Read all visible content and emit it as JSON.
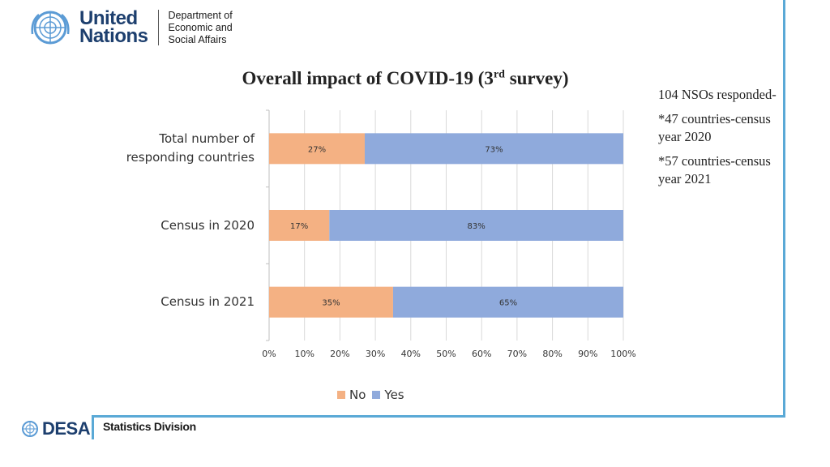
{
  "header": {
    "org_line1": "United",
    "org_line2": "Nations",
    "dept_line1": "Department of",
    "dept_line2": "Economic and",
    "dept_line3": "Social Affairs"
  },
  "title": {
    "prefix": "Overall impact of COVID-19 (3",
    "sup": "rd",
    "suffix": " survey)"
  },
  "notes": [
    "104 NSOs responded-",
    "*47 countries-census year 2020",
    "*57 countries-census year 2021"
  ],
  "footer": {
    "logo_text": "DESA",
    "division": "Statistics Division"
  },
  "colors": {
    "no": "#f4b183",
    "yes": "#8faadc",
    "accent": "#5aa9d6",
    "brand": "#1d3f6e"
  },
  "chart_data": {
    "type": "bar",
    "orientation": "horizontal",
    "stacked": true,
    "percent": true,
    "categories": [
      "Total number of responding countries",
      "Census in 2020",
      "Census in 2021"
    ],
    "category_lines": [
      [
        "Total number of",
        "responding countries"
      ],
      [
        "Census in 2020"
      ],
      [
        "Census in 2021"
      ]
    ],
    "series": [
      {
        "name": "No",
        "values": [
          27,
          17,
          35
        ],
        "labels": [
          "27%",
          "17%",
          "35%"
        ]
      },
      {
        "name": "Yes",
        "values": [
          73,
          83,
          65
        ],
        "labels": [
          "73%",
          "83%",
          "65%"
        ]
      }
    ],
    "xlim": [
      0,
      100
    ],
    "xticks": [
      "0%",
      "10%",
      "20%",
      "30%",
      "40%",
      "50%",
      "60%",
      "70%",
      "80%",
      "90%",
      "100%"
    ],
    "grid": true,
    "legend": "bottom"
  }
}
